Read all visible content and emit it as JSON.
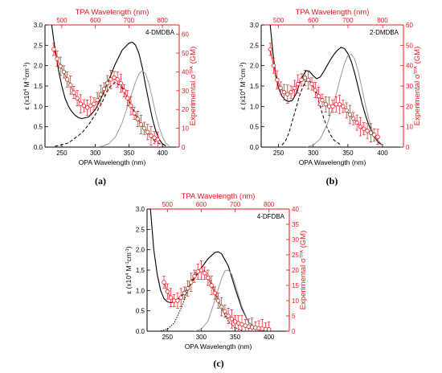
{
  "colors": {
    "red": "#e8191c",
    "black": "#000000",
    "gray": "#9a9a9a"
  },
  "chart_data": [
    {
      "type": "line",
      "panel_label": "(a)",
      "sample": "4-DMDBA",
      "xlabel": "OPA Wavelength (nm)",
      "ylabel": "ε (x10⁴ M⁻¹cm⁻¹)",
      "x2label": "TPA Wavelength (nm)",
      "y2label": "Experimental σ^TPA (GM)",
      "xlim": [
        225,
        425
      ],
      "ylim": [
        0,
        3.0
      ],
      "x2lim": [
        450,
        850
      ],
      "y2lim": [
        0,
        65
      ],
      "xticks": [
        "250",
        "300",
        "350",
        "400"
      ],
      "yticks": [
        "0.0",
        "0.5",
        "1.0",
        "1.5",
        "2.0",
        "2.5",
        "3.0"
      ],
      "x2ticks": [
        "500",
        "600",
        "700",
        "800"
      ],
      "y2ticks": [
        "0",
        "10",
        "20",
        "30",
        "40",
        "50",
        "60"
      ],
      "series": [
        {
          "style": "solid-black",
          "x": [
            235,
            240,
            245,
            250,
            255,
            260,
            265,
            270,
            275,
            280,
            290,
            300,
            310,
            320,
            330,
            340,
            350,
            355,
            360,
            365,
            370,
            375,
            380,
            385,
            390,
            395,
            400,
            405
          ],
          "y": [
            3.0,
            2.4,
            1.9,
            1.5,
            1.2,
            1.0,
            0.87,
            0.78,
            0.72,
            0.7,
            0.74,
            0.92,
            1.25,
            1.65,
            2.05,
            2.38,
            2.55,
            2.58,
            2.5,
            2.3,
            1.95,
            1.5,
            1.1,
            0.7,
            0.4,
            0.2,
            0.08,
            0.03
          ]
        },
        {
          "style": "dashed-black",
          "x": [
            240,
            260,
            280,
            290,
            300,
            310,
            320,
            330,
            340,
            350,
            360,
            370,
            380,
            390,
            400
          ],
          "y": [
            0.02,
            0.1,
            0.35,
            0.55,
            0.8,
            1.1,
            1.45,
            1.6,
            1.45,
            1.15,
            0.8,
            0.5,
            0.28,
            0.13,
            0.05
          ]
        },
        {
          "style": "solid-gray",
          "x": [
            300,
            310,
            320,
            330,
            340,
            350,
            360,
            365,
            370,
            375,
            380,
            385,
            390,
            395,
            400,
            405,
            410
          ],
          "y": [
            0.0,
            0.02,
            0.08,
            0.25,
            0.6,
            1.1,
            1.6,
            1.8,
            1.88,
            1.8,
            1.55,
            1.2,
            0.82,
            0.5,
            0.25,
            0.1,
            0.03
          ]
        },
        {
          "style": "red-points",
          "axis": "secondary",
          "x": [
            476,
            486,
            496,
            506,
            516,
            526,
            536,
            546,
            556,
            566,
            576,
            586,
            596,
            606,
            616,
            626,
            636,
            646,
            656,
            666,
            676,
            686,
            696,
            706,
            716,
            726,
            736,
            746,
            756,
            766,
            776,
            786
          ],
          "y": [
            52,
            47,
            43,
            40,
            36,
            33,
            29,
            26,
            23,
            22,
            21,
            22,
            23,
            25,
            28,
            31,
            34,
            36,
            37,
            36,
            34,
            30,
            26,
            22,
            18,
            15,
            12,
            10,
            8,
            6,
            5,
            4
          ]
        }
      ]
    },
    {
      "type": "line",
      "panel_label": "(b)",
      "sample": "2-DMDBA",
      "xlabel": "OPA Wavelength (nm)",
      "ylabel": "ε (x10⁴ M⁻¹cm⁻¹)",
      "x2label": "TPA Wavelength (nm)",
      "y2label": "Experimental σ^TPA (GM)",
      "xlim": [
        225,
        430
      ],
      "ylim": [
        0,
        3.0
      ],
      "x2lim": [
        450,
        860
      ],
      "y2lim": [
        0,
        60
      ],
      "xticks": [
        "250",
        "300",
        "350",
        "400"
      ],
      "yticks": [
        "0.0",
        "0.5",
        "1.0",
        "1.5",
        "2.0",
        "2.5",
        "3.0"
      ],
      "x2ticks": [
        "500",
        "600",
        "700",
        "800"
      ],
      "y2ticks": [
        "0",
        "10",
        "20",
        "30",
        "40",
        "50",
        "60"
      ],
      "series": [
        {
          "style": "solid-black",
          "x": [
            238,
            242,
            246,
            250,
            255,
            260,
            265,
            270,
            275,
            280,
            285,
            290,
            295,
            300,
            305,
            310,
            315,
            320,
            325,
            330,
            335,
            340,
            345,
            350,
            355,
            360,
            365,
            370,
            375,
            380,
            385,
            390,
            395,
            400
          ],
          "y": [
            3.0,
            2.3,
            1.75,
            1.45,
            1.25,
            1.15,
            1.12,
            1.15,
            1.3,
            1.55,
            1.75,
            1.88,
            1.85,
            1.75,
            1.68,
            1.72,
            1.85,
            2.0,
            2.15,
            2.28,
            2.38,
            2.45,
            2.42,
            2.3,
            2.1,
            1.8,
            1.45,
            1.1,
            0.8,
            0.55,
            0.35,
            0.2,
            0.1,
            0.05
          ]
        },
        {
          "style": "dashed-black",
          "x": [
            255,
            260,
            265,
            270,
            275,
            280,
            285,
            290,
            295,
            300,
            305,
            310,
            315,
            320,
            325,
            330,
            340
          ],
          "y": [
            0.05,
            0.15,
            0.35,
            0.65,
            0.95,
            1.25,
            1.48,
            1.62,
            1.63,
            1.5,
            1.28,
            1.0,
            0.72,
            0.48,
            0.3,
            0.17,
            0.05
          ]
        },
        {
          "style": "solid-gray",
          "x": [
            290,
            300,
            310,
            320,
            330,
            340,
            345,
            350,
            355,
            360,
            365,
            370,
            375,
            380,
            385,
            390,
            400
          ],
          "y": [
            0.0,
            0.05,
            0.2,
            0.55,
            1.1,
            1.75,
            2.05,
            2.25,
            2.28,
            2.15,
            1.85,
            1.45,
            1.05,
            0.7,
            0.42,
            0.22,
            0.05
          ]
        },
        {
          "style": "red-points",
          "axis": "secondary",
          "x": [
            476,
            486,
            496,
            506,
            516,
            526,
            536,
            546,
            556,
            566,
            576,
            586,
            596,
            606,
            616,
            626,
            636,
            646,
            656,
            666,
            676,
            686,
            696,
            706,
            716,
            726,
            736,
            746,
            756,
            766,
            776,
            786
          ],
          "y": [
            48,
            40,
            33,
            29,
            27,
            26,
            27,
            29,
            31,
            33,
            34,
            33,
            31,
            28,
            25,
            23,
            21,
            20,
            20,
            21,
            21,
            20,
            18,
            16,
            14,
            12,
            10,
            9,
            8,
            7,
            6,
            5
          ]
        }
      ]
    },
    {
      "type": "line",
      "panel_label": "(c)",
      "sample": "4-DFDBA",
      "xlabel": "OPA Wavelength (nm)",
      "ylabel": "ε (x10⁴ M⁻¹cm⁻¹)",
      "x2label": "TPA Wavelength (nm)",
      "y2label": "Experimental σ^TPA (GM)",
      "xlim": [
        220,
        430
      ],
      "ylim": [
        0,
        3.0
      ],
      "x2lim": [
        440,
        860
      ],
      "y2lim": [
        0,
        40
      ],
      "xticks": [
        "250",
        "300",
        "350",
        "400"
      ],
      "yticks": [
        "0.0",
        "0.5",
        "1.0",
        "1.5",
        "2.0",
        "2.5",
        "3.0"
      ],
      "x2ticks": [
        "500",
        "600",
        "700",
        "800"
      ],
      "y2ticks": [
        "0",
        "5",
        "10",
        "15",
        "20",
        "25",
        "30",
        "35",
        "40"
      ],
      "series": [
        {
          "style": "solid-black",
          "x": [
            225,
            230,
            235,
            240,
            245,
            250,
            255,
            260,
            270,
            280,
            290,
            300,
            310,
            320,
            325,
            330,
            340,
            350,
            360,
            370,
            380,
            390,
            400
          ],
          "y": [
            3.0,
            2.0,
            1.4,
            1.0,
            0.8,
            0.72,
            0.7,
            0.72,
            0.85,
            1.05,
            1.3,
            1.55,
            1.78,
            1.93,
            1.95,
            1.9,
            1.6,
            1.05,
            0.55,
            0.22,
            0.08,
            0.03,
            0.01
          ]
        },
        {
          "style": "dotted-black",
          "x": [
            240,
            250,
            260,
            270,
            280,
            290,
            300,
            310,
            320,
            330,
            340,
            350,
            360
          ],
          "y": [
            0.01,
            0.05,
            0.2,
            0.55,
            1.0,
            1.42,
            1.55,
            1.4,
            1.0,
            0.55,
            0.25,
            0.08,
            0.02
          ]
        },
        {
          "style": "solid-gray",
          "x": [
            290,
            300,
            310,
            320,
            330,
            335,
            340,
            345,
            350,
            360,
            370,
            380,
            390
          ],
          "y": [
            0.0,
            0.05,
            0.25,
            0.75,
            1.3,
            1.48,
            1.5,
            1.4,
            1.15,
            0.6,
            0.22,
            0.06,
            0.01
          ]
        },
        {
          "style": "red-points",
          "axis": "secondary",
          "x": [
            490,
            500,
            510,
            520,
            530,
            540,
            550,
            560,
            570,
            580,
            590,
            600,
            610,
            620,
            630,
            640,
            650,
            660,
            670,
            680,
            690,
            700,
            710,
            720,
            730,
            740,
            750,
            760,
            770,
            780,
            790,
            800
          ],
          "y": [
            16,
            13,
            11,
            10,
            10,
            11,
            12.5,
            14,
            16,
            18,
            19.5,
            20,
            19,
            17.5,
            15,
            12.5,
            10,
            8,
            6.5,
            5,
            4,
            3.2,
            2.6,
            2.2,
            1.8,
            1.5,
            1.3,
            1.1,
            0.9,
            0.8,
            0.7,
            0.6
          ]
        }
      ]
    }
  ]
}
